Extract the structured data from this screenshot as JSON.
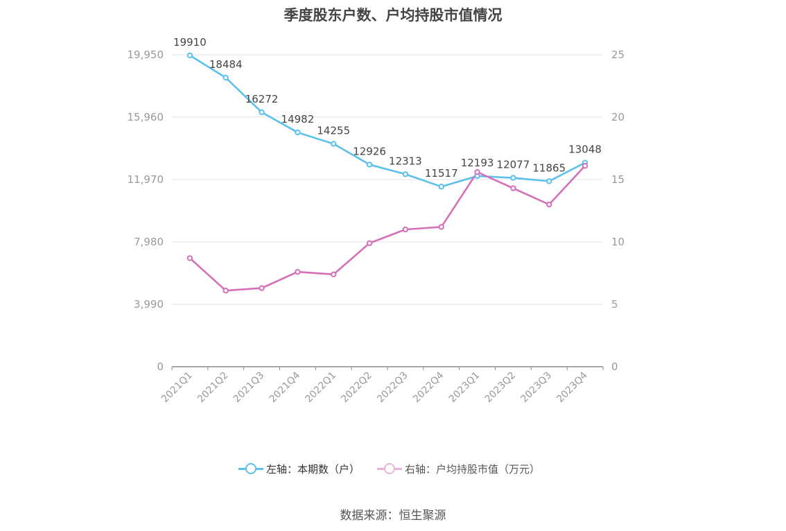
{
  "title": "季度股东户数、户均持股市值情况",
  "source": "数据来源：恒生聚源",
  "legend": {
    "left": "左轴：本期数（户）",
    "right": "右轴：户均持股市值（万元）"
  },
  "colors": {
    "left_series": "#5bc0eb",
    "right_series": "#d46fb8",
    "grid": "#e2e4f0",
    "axis_text": "#999999",
    "label_text": "#444444"
  },
  "chart_data": {
    "type": "line",
    "categories": [
      "2021Q1",
      "2021Q2",
      "2021Q3",
      "2021Q4",
      "2022Q1",
      "2022Q2",
      "2022Q3",
      "2022Q4",
      "2023Q1",
      "2023Q2",
      "2023Q3",
      "2023Q4"
    ],
    "left_axis": {
      "ticks": [
        "0",
        "3,990",
        "7,980",
        "11,970",
        "15,960",
        "19,950"
      ],
      "min": 0,
      "max": 19950
    },
    "right_axis": {
      "ticks": [
        "0",
        "5",
        "10",
        "15",
        "20",
        "25"
      ],
      "min": 0,
      "max": 25
    },
    "series": [
      {
        "name": "左轴：本期数（户）",
        "axis": "left",
        "color": "#5bc0eb",
        "values": [
          19910,
          18484,
          16272,
          14982,
          14255,
          12926,
          12313,
          11517,
          12193,
          12077,
          11865,
          13048
        ],
        "labels": [
          "19910",
          "18484",
          "16272",
          "14982",
          "14255",
          "12926",
          "12313",
          "11517",
          "12193",
          "12077",
          "11865",
          "13048"
        ]
      },
      {
        "name": "右轴：户均持股市值（万元）",
        "axis": "right",
        "color": "#d46fb8",
        "values": [
          8.7,
          6.1,
          6.3,
          7.6,
          7.4,
          9.9,
          11.0,
          11.2,
          15.6,
          14.3,
          13.0,
          16.1
        ]
      }
    ],
    "grid": true,
    "legend_position": "bottom"
  }
}
